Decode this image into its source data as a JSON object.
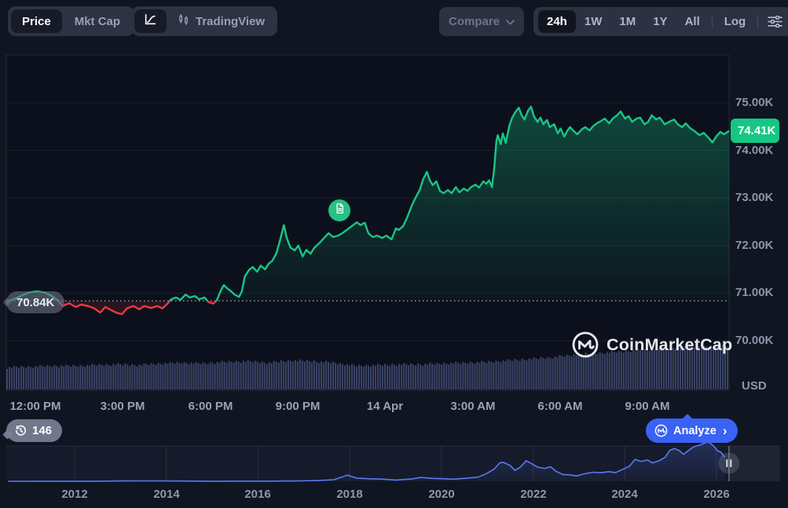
{
  "toolbar": {
    "mode_toggle": {
      "price": "Price",
      "mkt_cap": "Mkt Cap"
    },
    "chart_type": {
      "tradingview": "TradingView"
    },
    "compare": {
      "label": "Compare"
    },
    "ranges": {
      "items": [
        "24h",
        "1W",
        "1M",
        "1Y",
        "All"
      ],
      "active": "24h",
      "log": "Log"
    }
  },
  "price_axis": {
    "ticks": [
      {
        "label": "75.00K",
        "value": 75
      },
      {
        "label": "74.00K",
        "value": 74
      },
      {
        "label": "73.00K",
        "value": 73
      },
      {
        "label": "72.00K",
        "value": 72
      },
      {
        "label": "71.00K",
        "value": 71
      },
      {
        "label": "70.00K",
        "value": 70
      }
    ],
    "currency": "USD"
  },
  "badges": {
    "current_price": "74.41K",
    "prev_close": "70.84K",
    "news_count": "146"
  },
  "time_axis": {
    "ticks": [
      "12:00 PM",
      "3:00 PM",
      "6:00 PM",
      "9:00 PM",
      "14 Apr",
      "3:00 AM",
      "6:00 AM",
      "9:00 AM"
    ]
  },
  "navigator_axis": {
    "ticks": [
      "2012",
      "2014",
      "2016",
      "2018",
      "2020",
      "2022",
      "2024",
      "2026"
    ]
  },
  "watermark": {
    "label": "CoinMarketCap"
  },
  "analyze": {
    "label": "Analyze",
    "chevron": "›"
  },
  "colors": {
    "green": "#16C784",
    "red": "#EA3943",
    "blue": "#3A62F5",
    "nav_line": "#5B79F2",
    "volume_bar": "#3A4365"
  },
  "chart_data": {
    "type": "line",
    "window": "24h",
    "unit": "USD (thousands)",
    "yticks": [
      75,
      74,
      73,
      72,
      71,
      70
    ],
    "ylim": [
      68.96,
      76.0
    ],
    "prev_close": 70.84,
    "current_price": 74.41,
    "main_series": [
      [
        0.0,
        70.78
      ],
      [
        0.004,
        70.84
      ],
      [
        0.013,
        70.89
      ],
      [
        0.024,
        70.97
      ],
      [
        0.033,
        71.02
      ],
      [
        0.043,
        71.04
      ],
      [
        0.054,
        71.01
      ],
      [
        0.063,
        70.94
      ],
      [
        0.072,
        70.84
      ],
      [
        0.078,
        70.73
      ],
      [
        0.087,
        70.79
      ],
      [
        0.096,
        70.71
      ],
      [
        0.104,
        70.76
      ],
      [
        0.113,
        70.73
      ],
      [
        0.122,
        70.68
      ],
      [
        0.13,
        70.59
      ],
      [
        0.137,
        70.71
      ],
      [
        0.143,
        70.66
      ],
      [
        0.152,
        70.59
      ],
      [
        0.16,
        70.56
      ],
      [
        0.167,
        70.68
      ],
      [
        0.176,
        70.73
      ],
      [
        0.184,
        70.66
      ],
      [
        0.191,
        70.73
      ],
      [
        0.2,
        70.69
      ],
      [
        0.209,
        70.73
      ],
      [
        0.216,
        70.68
      ],
      [
        0.223,
        70.78
      ],
      [
        0.228,
        70.87
      ],
      [
        0.235,
        70.91
      ],
      [
        0.241,
        70.86
      ],
      [
        0.248,
        70.97
      ],
      [
        0.254,
        70.91
      ],
      [
        0.261,
        70.94
      ],
      [
        0.267,
        70.87
      ],
      [
        0.274,
        70.91
      ],
      [
        0.28,
        70.81
      ],
      [
        0.286,
        70.78
      ],
      [
        0.291,
        70.84
      ],
      [
        0.297,
        71.06
      ],
      [
        0.301,
        71.17
      ],
      [
        0.305,
        71.11
      ],
      [
        0.311,
        71.04
      ],
      [
        0.316,
        70.97
      ],
      [
        0.322,
        70.92
      ],
      [
        0.326,
        71.04
      ],
      [
        0.33,
        71.35
      ],
      [
        0.336,
        71.49
      ],
      [
        0.341,
        71.55
      ],
      [
        0.347,
        71.45
      ],
      [
        0.352,
        71.58
      ],
      [
        0.358,
        71.5
      ],
      [
        0.363,
        71.62
      ],
      [
        0.368,
        71.68
      ],
      [
        0.374,
        71.85
      ],
      [
        0.379,
        72.13
      ],
      [
        0.384,
        72.43
      ],
      [
        0.388,
        72.16
      ],
      [
        0.393,
        71.96
      ],
      [
        0.399,
        71.9
      ],
      [
        0.404,
        72.0
      ],
      [
        0.41,
        71.77
      ],
      [
        0.415,
        71.91
      ],
      [
        0.421,
        71.83
      ],
      [
        0.426,
        71.95
      ],
      [
        0.433,
        72.05
      ],
      [
        0.439,
        72.15
      ],
      [
        0.446,
        72.26
      ],
      [
        0.452,
        72.18
      ],
      [
        0.459,
        72.21
      ],
      [
        0.465,
        72.26
      ],
      [
        0.472,
        72.34
      ],
      [
        0.478,
        72.41
      ],
      [
        0.485,
        72.49
      ],
      [
        0.49,
        72.43
      ],
      [
        0.496,
        72.48
      ],
      [
        0.501,
        72.26
      ],
      [
        0.507,
        72.18
      ],
      [
        0.513,
        72.21
      ],
      [
        0.52,
        72.16
      ],
      [
        0.526,
        72.21
      ],
      [
        0.533,
        72.13
      ],
      [
        0.539,
        72.36
      ],
      [
        0.543,
        72.33
      ],
      [
        0.549,
        72.41
      ],
      [
        0.554,
        72.57
      ],
      [
        0.561,
        72.84
      ],
      [
        0.566,
        73.0
      ],
      [
        0.572,
        73.17
      ],
      [
        0.577,
        73.4
      ],
      [
        0.582,
        73.55
      ],
      [
        0.586,
        73.37
      ],
      [
        0.59,
        73.27
      ],
      [
        0.595,
        73.35
      ],
      [
        0.6,
        73.15
      ],
      [
        0.605,
        73.1
      ],
      [
        0.611,
        73.17
      ],
      [
        0.616,
        73.1
      ],
      [
        0.622,
        73.23
      ],
      [
        0.627,
        73.12
      ],
      [
        0.633,
        73.2
      ],
      [
        0.638,
        73.15
      ],
      [
        0.643,
        73.23
      ],
      [
        0.649,
        73.28
      ],
      [
        0.654,
        73.22
      ],
      [
        0.66,
        73.35
      ],
      [
        0.664,
        73.3
      ],
      [
        0.668,
        73.37
      ],
      [
        0.672,
        73.23
      ],
      [
        0.675,
        73.61
      ],
      [
        0.678,
        74.19
      ],
      [
        0.68,
        74.32
      ],
      [
        0.684,
        74.13
      ],
      [
        0.687,
        74.36
      ],
      [
        0.691,
        74.16
      ],
      [
        0.696,
        74.52
      ],
      [
        0.7,
        74.69
      ],
      [
        0.704,
        74.8
      ],
      [
        0.709,
        74.9
      ],
      [
        0.713,
        74.74
      ],
      [
        0.717,
        74.65
      ],
      [
        0.722,
        74.84
      ],
      [
        0.726,
        74.92
      ],
      [
        0.73,
        74.72
      ],
      [
        0.735,
        74.6
      ],
      [
        0.739,
        74.69
      ],
      [
        0.743,
        74.55
      ],
      [
        0.748,
        74.64
      ],
      [
        0.752,
        74.49
      ],
      [
        0.758,
        74.55
      ],
      [
        0.763,
        74.36
      ],
      [
        0.767,
        74.46
      ],
      [
        0.772,
        74.29
      ],
      [
        0.776,
        74.41
      ],
      [
        0.78,
        74.49
      ],
      [
        0.785,
        74.41
      ],
      [
        0.79,
        74.34
      ],
      [
        0.796,
        74.44
      ],
      [
        0.801,
        74.49
      ],
      [
        0.807,
        74.42
      ],
      [
        0.812,
        74.51
      ],
      [
        0.817,
        74.57
      ],
      [
        0.823,
        74.62
      ],
      [
        0.828,
        74.67
      ],
      [
        0.834,
        74.57
      ],
      [
        0.839,
        74.67
      ],
      [
        0.845,
        74.74
      ],
      [
        0.85,
        74.82
      ],
      [
        0.856,
        74.67
      ],
      [
        0.861,
        74.72
      ],
      [
        0.866,
        74.6
      ],
      [
        0.872,
        74.67
      ],
      [
        0.877,
        74.69
      ],
      [
        0.883,
        74.55
      ],
      [
        0.888,
        74.6
      ],
      [
        0.893,
        74.74
      ],
      [
        0.899,
        74.65
      ],
      [
        0.904,
        74.69
      ],
      [
        0.911,
        74.55
      ],
      [
        0.917,
        74.6
      ],
      [
        0.924,
        74.65
      ],
      [
        0.929,
        74.55
      ],
      [
        0.935,
        74.49
      ],
      [
        0.94,
        74.57
      ],
      [
        0.946,
        74.47
      ],
      [
        0.952,
        74.41
      ],
      [
        0.959,
        74.32
      ],
      [
        0.965,
        74.37
      ],
      [
        0.972,
        74.26
      ],
      [
        0.977,
        74.17
      ],
      [
        0.983,
        74.31
      ],
      [
        0.988,
        74.39
      ],
      [
        0.993,
        74.34
      ],
      [
        1.0,
        74.41
      ]
    ],
    "volume_profile": [
      28,
      29,
      30,
      30,
      31,
      32,
      31,
      33,
      34,
      33,
      35,
      36,
      34,
      37,
      36,
      34,
      30,
      31,
      32,
      32,
      33,
      34,
      35,
      37,
      39,
      41,
      44,
      46,
      48,
      50,
      52,
      54,
      55,
      56
    ],
    "navigator": {
      "series": [
        [
          2010.55,
          0.1
        ],
        [
          2011.2,
          0.15
        ],
        [
          2011.8,
          0.2
        ],
        [
          2012.5,
          0.3
        ],
        [
          2013.0,
          1.0
        ],
        [
          2013.4,
          1.2
        ],
        [
          2013.9,
          1.1
        ],
        [
          2014.4,
          0.7
        ],
        [
          2015.0,
          0.35
        ],
        [
          2015.6,
          0.4
        ],
        [
          2016.2,
          0.6
        ],
        [
          2016.8,
          0.9
        ],
        [
          2017.3,
          2.2
        ],
        [
          2017.65,
          5
        ],
        [
          2017.95,
          19
        ],
        [
          2018.15,
          10
        ],
        [
          2018.4,
          8
        ],
        [
          2018.7,
          6.8
        ],
        [
          2019.0,
          3.8
        ],
        [
          2019.35,
          7
        ],
        [
          2019.55,
          12
        ],
        [
          2019.8,
          9
        ],
        [
          2020.05,
          8
        ],
        [
          2020.25,
          6.5
        ],
        [
          2020.55,
          9.5
        ],
        [
          2020.8,
          13
        ],
        [
          2020.98,
          24
        ],
        [
          2021.15,
          38
        ],
        [
          2021.27,
          57
        ],
        [
          2021.35,
          59
        ],
        [
          2021.5,
          49
        ],
        [
          2021.6,
          34
        ],
        [
          2021.72,
          44
        ],
        [
          2021.85,
          64
        ],
        [
          2021.98,
          54
        ],
        [
          2022.1,
          44
        ],
        [
          2022.25,
          40
        ],
        [
          2022.38,
          45
        ],
        [
          2022.5,
          31
        ],
        [
          2022.65,
          21
        ],
        [
          2022.8,
          20
        ],
        [
          2022.95,
          16.5
        ],
        [
          2023.1,
          23
        ],
        [
          2023.3,
          28
        ],
        [
          2023.5,
          27
        ],
        [
          2023.65,
          30
        ],
        [
          2023.8,
          27
        ],
        [
          2023.95,
          37
        ],
        [
          2024.1,
          47
        ],
        [
          2024.22,
          68
        ],
        [
          2024.35,
          62
        ],
        [
          2024.5,
          66
        ],
        [
          2024.6,
          57
        ],
        [
          2024.75,
          64
        ],
        [
          2024.88,
          75
        ],
        [
          2024.98,
          96
        ],
        [
          2025.08,
          102
        ],
        [
          2025.18,
          96
        ],
        [
          2025.28,
          84
        ],
        [
          2025.4,
          97
        ],
        [
          2025.5,
          107
        ],
        [
          2025.62,
          112
        ],
        [
          2025.72,
          118
        ],
        [
          2025.82,
          122
        ],
        [
          2025.92,
          112
        ],
        [
          2026.02,
          95
        ],
        [
          2026.1,
          90
        ],
        [
          2026.18,
          74.5
        ]
      ],
      "unit": "USD (thousands)",
      "range_handle_year": 2026.27
    }
  }
}
